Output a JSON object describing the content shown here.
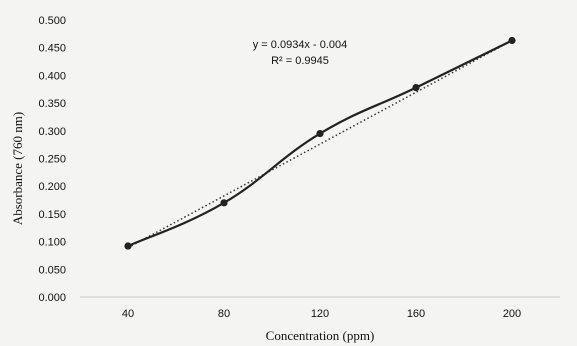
{
  "chart_data": {
    "type": "line",
    "xlabel": "Concentration (ppm)",
    "ylabel": "Absorbance (760 nm)",
    "categories": [
      "40",
      "80",
      "120",
      "160",
      "200"
    ],
    "x": [
      40,
      80,
      120,
      160,
      200
    ],
    "series": [
      {
        "values": [
          0.092,
          0.17,
          0.295,
          0.378,
          0.463
        ],
        "color": "#222222"
      }
    ],
    "trendline": {
      "type": "linear",
      "style": "dotted",
      "equation": "y = 0.0934x - 0.004",
      "r_squared": "R² = 0.9945",
      "start_value": 0.089,
      "end_value": 0.463
    },
    "y_ticks": [
      "0.000",
      "0.050",
      "0.100",
      "0.150",
      "0.200",
      "0.250",
      "0.300",
      "0.350",
      "0.400",
      "0.450",
      "0.500"
    ],
    "ylim": [
      0,
      0.5
    ],
    "grid": false,
    "legend": "none"
  }
}
